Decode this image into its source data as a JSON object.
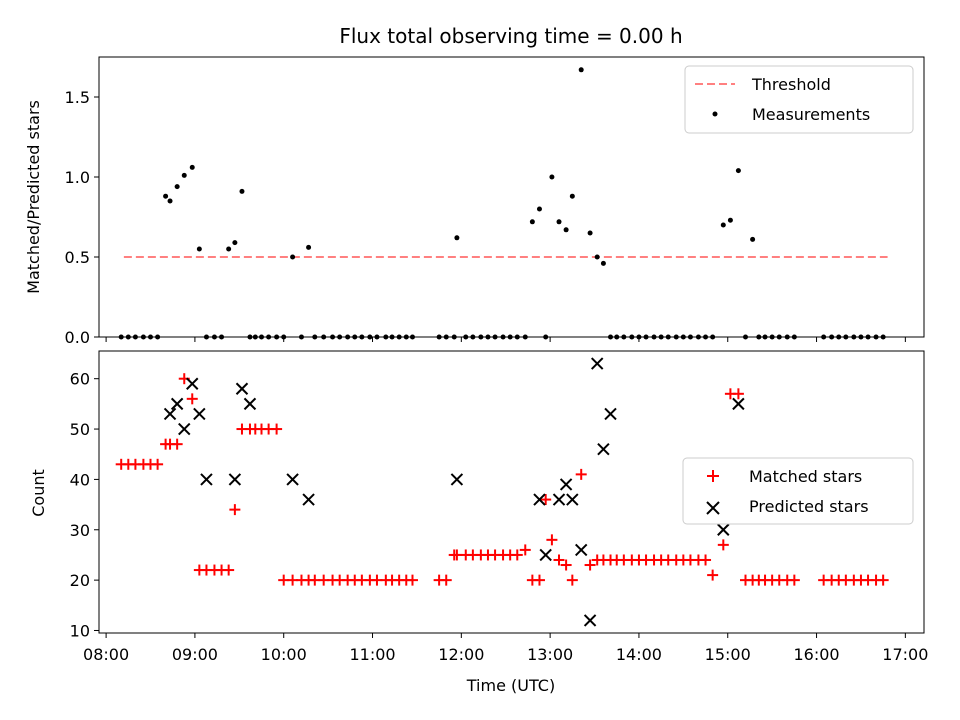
{
  "colors": {
    "threshold": "#ff8080",
    "matched": "#ff0000",
    "predicted": "#000000",
    "measurement": "#000000"
  },
  "chart_data": [
    {
      "type": "scatter",
      "title": "Flux total observing time = 0.00 h",
      "xlabel": "",
      "ylabel": "Matched/Predicted stars",
      "xlim": [
        7.92,
        17.21
      ],
      "ylim": [
        0,
        1.75
      ],
      "yticks": [
        "0.0",
        "0.5",
        "1.0",
        "1.5"
      ],
      "yticks_values": [
        0,
        0.5,
        1.0,
        1.5
      ],
      "legend": [
        "Threshold",
        "Measurements"
      ],
      "legend_position": "top-right",
      "threshold": {
        "name": "Threshold",
        "y": 0.5,
        "x_range": [
          8.2,
          16.8
        ]
      },
      "measurements": {
        "name": "Measurements",
        "x": [
          8.17,
          8.25,
          8.33,
          8.42,
          8.5,
          8.58,
          8.67,
          8.72,
          8.8,
          8.88,
          8.97,
          9.05,
          9.13,
          9.22,
          9.3,
          9.38,
          9.45,
          9.53,
          9.62,
          9.68,
          9.75,
          9.83,
          9.92,
          10.0,
          10.1,
          10.2,
          10.28,
          10.35,
          10.45,
          10.55,
          10.63,
          10.72,
          10.8,
          10.88,
          10.97,
          11.05,
          11.15,
          11.22,
          11.3,
          11.38,
          11.45,
          11.75,
          11.83,
          11.92,
          11.95,
          12.05,
          12.13,
          12.22,
          12.3,
          12.38,
          12.47,
          12.55,
          12.63,
          12.72,
          12.8,
          12.88,
          12.95,
          13.02,
          13.1,
          13.18,
          13.25,
          13.35,
          13.45,
          13.53,
          13.6,
          13.68,
          13.75,
          13.83,
          13.92,
          14.0,
          14.08,
          14.17,
          14.25,
          14.33,
          14.42,
          14.5,
          14.58,
          14.67,
          14.75,
          14.83,
          14.95,
          15.03,
          15.12,
          15.2,
          15.28,
          15.35,
          15.42,
          15.5,
          15.58,
          15.67,
          15.75,
          16.08,
          16.17,
          16.25,
          16.33,
          16.42,
          16.5,
          16.58,
          16.67,
          16.75
        ],
        "y": [
          0,
          0,
          0,
          0,
          0,
          0,
          0.88,
          0.85,
          0.94,
          1.01,
          1.06,
          0.55,
          0,
          0,
          0,
          0.55,
          0.59,
          0.91,
          0,
          0,
          0,
          0,
          0,
          0,
          0.5,
          0,
          0.56,
          0,
          0,
          0,
          0,
          0,
          0,
          0,
          0,
          0,
          0,
          0,
          0,
          0,
          0,
          0,
          0,
          0,
          0.62,
          0,
          0,
          0,
          0,
          0,
          0,
          0,
          0,
          0,
          0.72,
          0.8,
          0,
          1.0,
          0.72,
          0.67,
          0.88,
          1.67,
          0.65,
          0.5,
          0.46,
          0,
          0,
          0,
          0,
          0,
          0,
          0,
          0,
          0,
          0,
          0,
          0,
          0,
          0,
          0,
          0.7,
          0.73,
          1.04,
          0,
          0.61,
          0,
          0,
          0,
          0,
          0,
          0,
          0,
          0,
          0,
          0,
          0,
          0,
          0,
          0,
          0
        ]
      }
    },
    {
      "type": "scatter",
      "title": "",
      "xlabel": "Time (UTC)",
      "ylabel": "Count",
      "xlim": [
        7.92,
        17.21
      ],
      "ylim": [
        9.5,
        65.5
      ],
      "yticks": [
        "10",
        "20",
        "30",
        "40",
        "50",
        "60"
      ],
      "yticks_values": [
        10,
        20,
        30,
        40,
        50,
        60
      ],
      "xticks": [
        "08:00",
        "09:00",
        "10:00",
        "11:00",
        "12:00",
        "13:00",
        "14:00",
        "15:00",
        "16:00",
        "17:00"
      ],
      "xticks_values": [
        8,
        9,
        10,
        11,
        12,
        13,
        14,
        15,
        16,
        17
      ],
      "legend": [
        "Matched stars",
        "Predicted stars"
      ],
      "legend_position": "center-right",
      "matched": {
        "name": "Matched stars",
        "x": [
          8.17,
          8.25,
          8.33,
          8.42,
          8.5,
          8.58,
          8.67,
          8.72,
          8.8,
          8.88,
          8.97,
          9.05,
          9.13,
          9.22,
          9.3,
          9.38,
          9.45,
          9.53,
          9.62,
          9.68,
          9.75,
          9.83,
          9.92,
          10.0,
          10.1,
          10.2,
          10.28,
          10.35,
          10.45,
          10.55,
          10.63,
          10.72,
          10.8,
          10.88,
          10.97,
          11.05,
          11.15,
          11.22,
          11.3,
          11.38,
          11.45,
          11.75,
          11.83,
          11.92,
          11.95,
          12.05,
          12.13,
          12.22,
          12.3,
          12.38,
          12.47,
          12.55,
          12.63,
          12.72,
          12.8,
          12.88,
          12.95,
          13.02,
          13.1,
          13.18,
          13.25,
          13.35,
          13.45,
          13.53,
          13.6,
          13.68,
          13.75,
          13.83,
          13.92,
          14.0,
          14.08,
          14.17,
          14.25,
          14.33,
          14.42,
          14.5,
          14.58,
          14.67,
          14.75,
          14.83,
          14.95,
          15.03,
          15.12,
          15.2,
          15.28,
          15.35,
          15.42,
          15.5,
          15.58,
          15.67,
          15.75,
          16.08,
          16.17,
          16.25,
          16.33,
          16.42,
          16.5,
          16.58,
          16.67,
          16.75
        ],
        "y": [
          43,
          43,
          43,
          43,
          43,
          43,
          47,
          47,
          47,
          60,
          56,
          22,
          22,
          22,
          22,
          22,
          34,
          50,
          50,
          50,
          50,
          50,
          50,
          20,
          20,
          20,
          20,
          20,
          20,
          20,
          20,
          20,
          20,
          20,
          20,
          20,
          20,
          20,
          20,
          20,
          20,
          20,
          20,
          25,
          25,
          25,
          25,
          25,
          25,
          25,
          25,
          25,
          25,
          26,
          20,
          20,
          36,
          28,
          24,
          23,
          20,
          41,
          23,
          24,
          24,
          24,
          24,
          24,
          24,
          24,
          24,
          24,
          24,
          24,
          24,
          24,
          24,
          24,
          24,
          21,
          27,
          57,
          57,
          20,
          20,
          20,
          20,
          20,
          20,
          20,
          20,
          20,
          20,
          20,
          20,
          20,
          20,
          20,
          20,
          20
        ]
      },
      "predicted": {
        "name": "Predicted stars",
        "x": [
          8.72,
          8.8,
          8.88,
          8.97,
          9.05,
          9.13,
          9.45,
          9.53,
          9.62,
          10.1,
          10.28,
          11.95,
          12.88,
          12.95,
          13.1,
          13.18,
          13.25,
          13.35,
          13.45,
          13.53,
          13.6,
          13.68,
          14.95,
          15.12
        ],
        "y": [
          53,
          55,
          50,
          59,
          53,
          40,
          40,
          58,
          55,
          40,
          36,
          40,
          36,
          25,
          36,
          39,
          36,
          26,
          12,
          63,
          46,
          53,
          30,
          55
        ]
      }
    }
  ]
}
